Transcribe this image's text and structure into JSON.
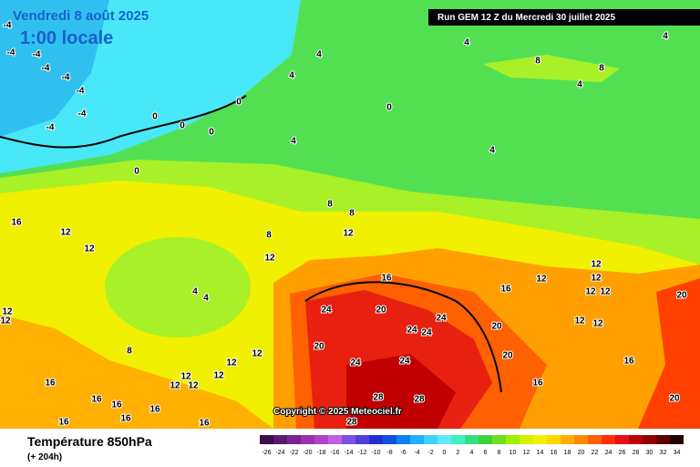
{
  "header": {
    "valid_date": "Vendredi 8 août 2025",
    "valid_time": "1:00 locale",
    "run": "Run GEM 12 Z du Mercredi 30 juillet 2025",
    "copyright": "Copyright © 2025 Meteociel.fr"
  },
  "legend": {
    "title": "Température 850hPa",
    "subtitle": "(+ 204h)",
    "values": [
      -26,
      -24,
      -22,
      -20,
      -18,
      -16,
      -14,
      -12,
      -10,
      -8,
      -6,
      -4,
      -2,
      0,
      2,
      4,
      6,
      8,
      10,
      12,
      14,
      16,
      18,
      20,
      22,
      24,
      26,
      28,
      30,
      32,
      34
    ],
    "colors": [
      "#3b0f4a",
      "#5a1a6e",
      "#7a2590",
      "#9b30b0",
      "#b040c8",
      "#c060e0",
      "#8050e0",
      "#5040d8",
      "#2030d0",
      "#1050e0",
      "#1080f0",
      "#20b0ff",
      "#40d0ff",
      "#60e8ff",
      "#40f0c0",
      "#30e080",
      "#40d040",
      "#70e020",
      "#a0f000",
      "#d8f000",
      "#f0f000",
      "#ffd800",
      "#ffb000",
      "#ff8800",
      "#ff6000",
      "#ff3000",
      "#e81010",
      "#c00000",
      "#900000",
      "#600000",
      "#200000"
    ]
  },
  "contour_labels": [
    -4,
    -4,
    -4,
    -4,
    -4,
    -4,
    -4,
    -4,
    0,
    0,
    0,
    0,
    0,
    4,
    4,
    4,
    8,
    8,
    4,
    4,
    0,
    4,
    4,
    16,
    12,
    12,
    12,
    8,
    8,
    8,
    12,
    16,
    20,
    24,
    20,
    24,
    24,
    24,
    24,
    24,
    20,
    20,
    16,
    16,
    12,
    12,
    12,
    12,
    12,
    12,
    16,
    20,
    20,
    4,
    4,
    8,
    12,
    12,
    12,
    12,
    12,
    12,
    16,
    16,
    16,
    16,
    16,
    16,
    16,
    12,
    12,
    28,
    28,
    28,
    12
  ]
}
